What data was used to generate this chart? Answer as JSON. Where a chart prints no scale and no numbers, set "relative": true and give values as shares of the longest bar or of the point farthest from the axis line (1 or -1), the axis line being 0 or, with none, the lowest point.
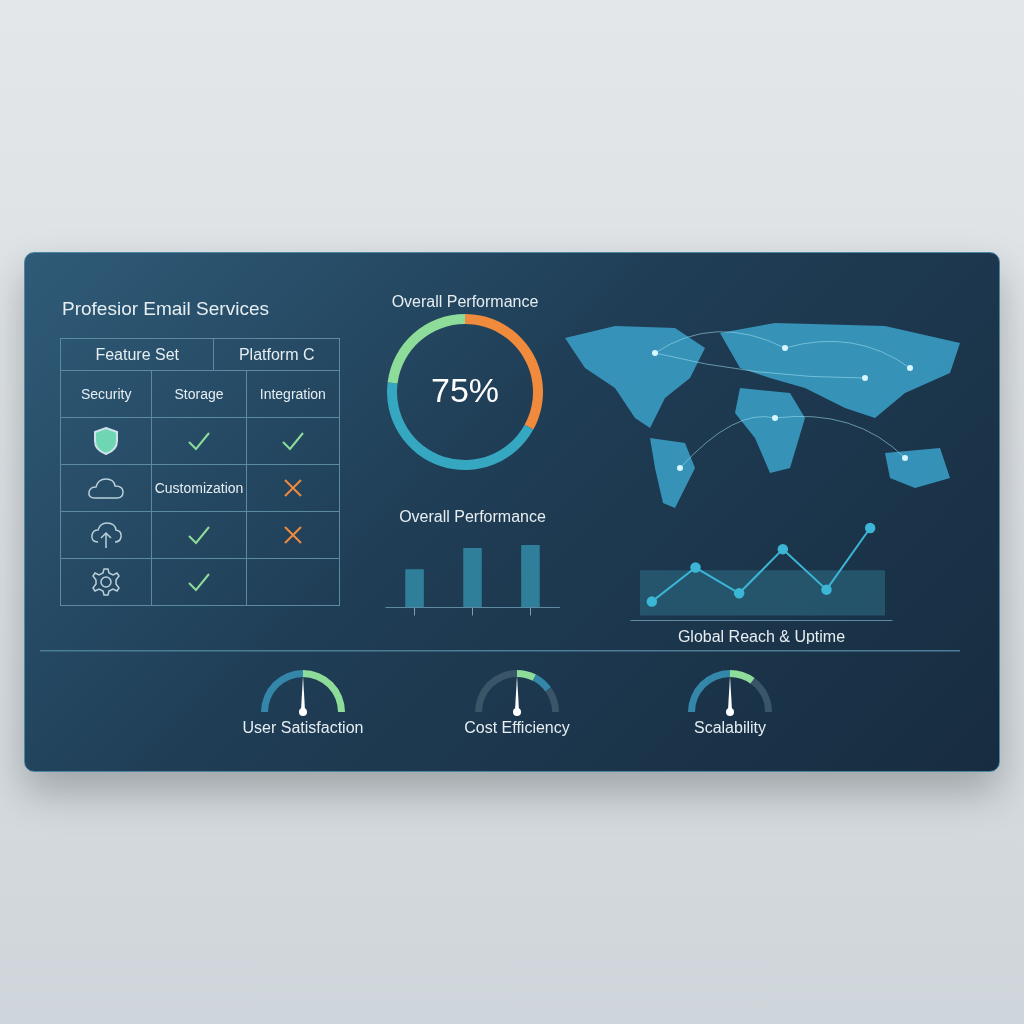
{
  "chart_data": [
    {
      "type": "other",
      "title": "Profesior Email Services",
      "annotations": [
        "Feature Set",
        "Platform C",
        "Security",
        "Storage",
        "Integration",
        "Customization"
      ]
    },
    {
      "type": "donut",
      "title": "Overall Performance",
      "categories": [
        null,
        null,
        null
      ],
      "values": [
        33,
        44,
        23
      ],
      "colors": [
        "#f08a3c",
        "#35a7c0",
        "#8edc9a"
      ],
      "annotations": [
        "75%"
      ]
    },
    {
      "type": "bar",
      "title": "Overall Performance",
      "relative": true,
      "categories": [
        null,
        null,
        null
      ],
      "values": [
        0.61,
        0.95,
        1
      ],
      "color": "#2f7f9a"
    },
    {
      "type": "line",
      "xlabel": "Global Reach & Uptime",
      "relative": true,
      "categories": [
        null,
        null,
        null,
        null,
        null,
        null
      ],
      "series": [
        {
          "color": "#3bb6d6",
          "values": [
            0.2,
            0.57,
            0.29,
            0.77,
            0.33,
            1
          ]
        }
      ],
      "marker": "circle",
      "bands": [
        {
          "axis": "y",
          "from": 0.05,
          "to": 0.54,
          "color": "#2d6f86"
        }
      ]
    },
    {
      "type": "donut",
      "title": "User Satisfaction",
      "categories": [
        null,
        null
      ],
      "values": [
        50,
        50
      ],
      "colors": [
        "#3487a8",
        "#8edc9a"
      ]
    },
    {
      "type": "donut",
      "title": "Cost Efficiency",
      "categories": [
        null,
        null,
        null,
        null
      ],
      "values": [
        50,
        15,
        15,
        20
      ],
      "colors": [
        "#3a5468",
        "#8edc9a",
        "#3487a8",
        "#3a5468"
      ]
    },
    {
      "type": "donut",
      "title": "Scalability",
      "categories": [
        null,
        null,
        null
      ],
      "values": [
        50,
        20,
        30
      ],
      "colors": [
        "#3487a8",
        "#8edc9a",
        "#3a5468"
      ]
    }
  ]
}
